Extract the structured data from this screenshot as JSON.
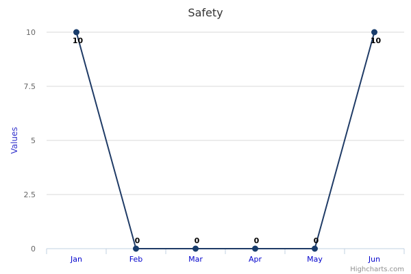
{
  "chart_data": {
    "type": "line",
    "title": "Safety",
    "ylabel": "Values",
    "xlabel": "",
    "categories": [
      "Jan",
      "Feb",
      "Mar",
      "Apr",
      "May",
      "Jun"
    ],
    "series": [
      {
        "values": [
          10,
          0,
          0,
          0,
          0,
          10
        ]
      }
    ],
    "ylim": [
      0,
      10
    ],
    "yticks": [
      "0",
      "2.5",
      "5",
      "7.5",
      "10"
    ],
    "ytick_values": [
      0,
      2.5,
      5,
      7.5,
      10
    ],
    "data_labels": [
      "10",
      "0",
      "0",
      "0",
      "0",
      "10"
    ],
    "grid": true,
    "legend": "none",
    "credits": "Highcharts.com",
    "colors": {
      "line": "#1f3b66",
      "marker": "#183c6b",
      "grid": "#d8d8d8",
      "axis": "#c0d0e0",
      "title": "#333333",
      "tick_label_x": "#0000cc",
      "tick_label_y": "#666666",
      "ylabel": "#3333cc",
      "credits": "#909090",
      "data_label": "#000000"
    }
  }
}
